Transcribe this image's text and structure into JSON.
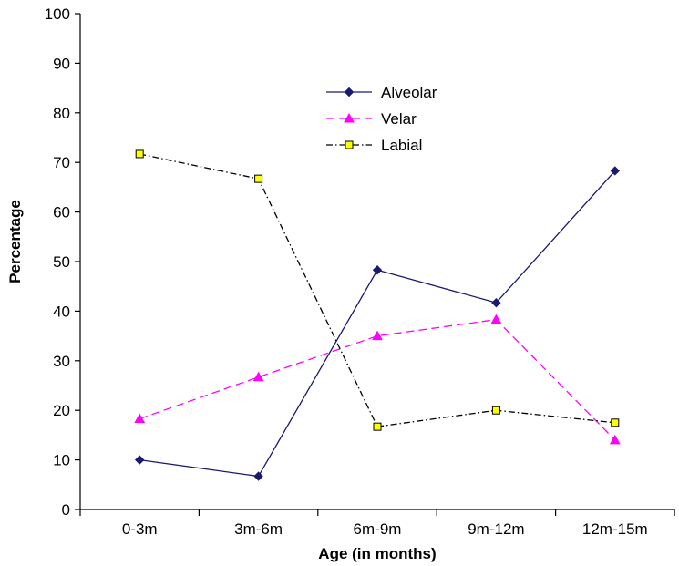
{
  "chart_data": {
    "type": "line",
    "title": "",
    "xlabel": "Age (in months)",
    "ylabel": "Percentage",
    "ylim": [
      0,
      100
    ],
    "yticks": [
      "0",
      "10",
      "20",
      "30",
      "40",
      "50",
      "60",
      "70",
      "80",
      "90",
      "100"
    ],
    "grid": false,
    "legend_position": "top-center",
    "categories": [
      "0-3m",
      "3m-6m",
      "6m-9m",
      "9m-12m",
      "12m-15m"
    ],
    "series": [
      {
        "name": "Alveolar",
        "values": [
          10,
          6.7,
          48.3,
          41.7,
          68.3
        ],
        "color": "#1a1a6e",
        "line_style": "solid",
        "marker": "diamond"
      },
      {
        "name": "Velar",
        "values": [
          18.3,
          26.7,
          35,
          38.3,
          14
        ],
        "color": "#ff00ff",
        "line_style": "dashed",
        "marker": "triangle"
      },
      {
        "name": "Labial",
        "values": [
          71.7,
          66.7,
          16.7,
          20,
          17.5
        ],
        "color": "#000000",
        "marker_fill": "#ffff00",
        "line_style": "dash-dot",
        "marker": "square"
      }
    ]
  }
}
